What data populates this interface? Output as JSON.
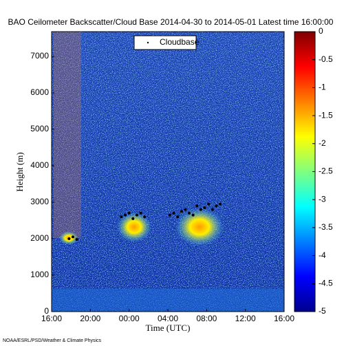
{
  "chart_data": {
    "type": "scatter",
    "title": "BAO Ceilometer Backscatter/Cloud Base 2014-04-30 to 2014-05-01 Latest time 16:00:00",
    "x_label": "Time (UTC)",
    "y_label": "Height (m)",
    "legend": "Cloudbase",
    "footer": "NOAA/ESRL/PSD/Weather & Climate Physics",
    "xlim": [
      0,
      24
    ],
    "xticks": [
      {
        "value": 0,
        "label": "16:00"
      },
      {
        "value": 4,
        "label": "20:00"
      },
      {
        "value": 8,
        "label": "00:00"
      },
      {
        "value": 12,
        "label": "04:00"
      },
      {
        "value": 16,
        "label": "08:00"
      },
      {
        "value": 20,
        "label": "12:00"
      },
      {
        "value": 24,
        "label": "16:00"
      }
    ],
    "ylim": [
      0,
      7680
    ],
    "yticks": [
      0,
      1000,
      2000,
      3000,
      4000,
      5000,
      6000,
      7000
    ],
    "clim": [
      -5,
      0
    ],
    "cticks": [
      0,
      -0.5,
      -1,
      -1.5,
      -2,
      -2.5,
      -3,
      -3.5,
      -4,
      -4.5,
      -5
    ],
    "x": [
      1.8,
      2.2,
      2.6,
      7.2,
      7.6,
      8.0,
      8.4,
      8.8,
      9.2,
      9.6,
      12.2,
      12.6,
      13.0,
      13.4,
      13.8,
      14.2,
      14.6,
      15.0,
      15.4,
      15.8,
      16.2,
      16.6,
      17.0,
      17.4
    ],
    "y": [
      2000,
      2050,
      1980,
      2600,
      2650,
      2700,
      2550,
      2650,
      2700,
      2600,
      2650,
      2700,
      2600,
      2750,
      2800,
      2700,
      2650,
      2900,
      2800,
      2850,
      2950,
      2800,
      2900,
      2950
    ],
    "color": "#000000"
  }
}
